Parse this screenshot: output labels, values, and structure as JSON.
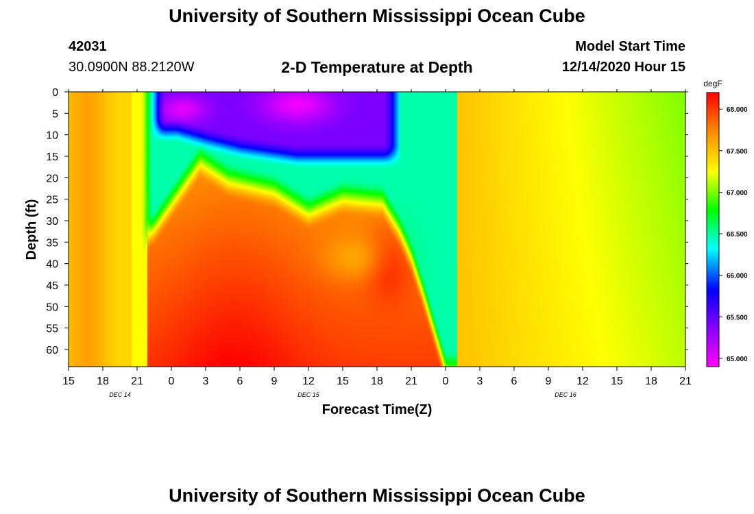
{
  "header": {
    "title": "University of Southern Mississippi Ocean Cube",
    "station_id": "42031",
    "location": "30.0900N 88.2120W",
    "subtitle": "2-D Temperature at Depth",
    "model_start_label": "Model Start Time",
    "model_start_value": "12/14/2020 Hour 15"
  },
  "footer": {
    "title": "University of Southern Mississippi Ocean Cube"
  },
  "chart_data": {
    "type": "heatmap",
    "title": "2-D Temperature at Depth",
    "xlabel": "Forecast Time(Z)",
    "ylabel": "Depth (ft)",
    "x_tick_labels": [
      "15",
      "18",
      "21",
      "0",
      "3",
      "6",
      "9",
      "12",
      "15",
      "18",
      "21",
      "0",
      "3",
      "6",
      "9",
      "12",
      "15",
      "18",
      "21"
    ],
    "x_range_hours": [
      0,
      54
    ],
    "date_labels": [
      {
        "label": "DEC 14",
        "hour": 4.5
      },
      {
        "label": "DEC 15",
        "hour": 21
      },
      {
        "label": "DEC 16",
        "hour": 43.5
      }
    ],
    "y_tick_labels": [
      "0",
      "5",
      "10",
      "15",
      "20",
      "25",
      "30",
      "35",
      "40",
      "45",
      "50",
      "55",
      "60"
    ],
    "ylim": [
      64,
      0
    ],
    "colorbar": {
      "unit": "degF",
      "min": 64.9,
      "max": 68.2,
      "tick_labels": [
        "68.000",
        "67.500",
        "67.000",
        "66.500",
        "66.000",
        "65.500",
        "65.000"
      ],
      "tick_values": [
        68.0,
        67.5,
        67.0,
        66.5,
        66.0,
        65.5,
        65.0
      ],
      "colors": [
        "#ff00ff",
        "#8800ff",
        "#0000ff",
        "#00ffff",
        "#00ff00",
        "#ffff00",
        "#ff8800",
        "#ff0000"
      ]
    },
    "field_description": {
      "cold_pool_hours": [
        7,
        29
      ],
      "cold_pool_depth_ft": [
        0,
        18
      ],
      "min_temp": 65.0,
      "max_temp": 68.1,
      "warm_core_hour": 14.5,
      "warm_core_depth_ft": 64
    }
  }
}
